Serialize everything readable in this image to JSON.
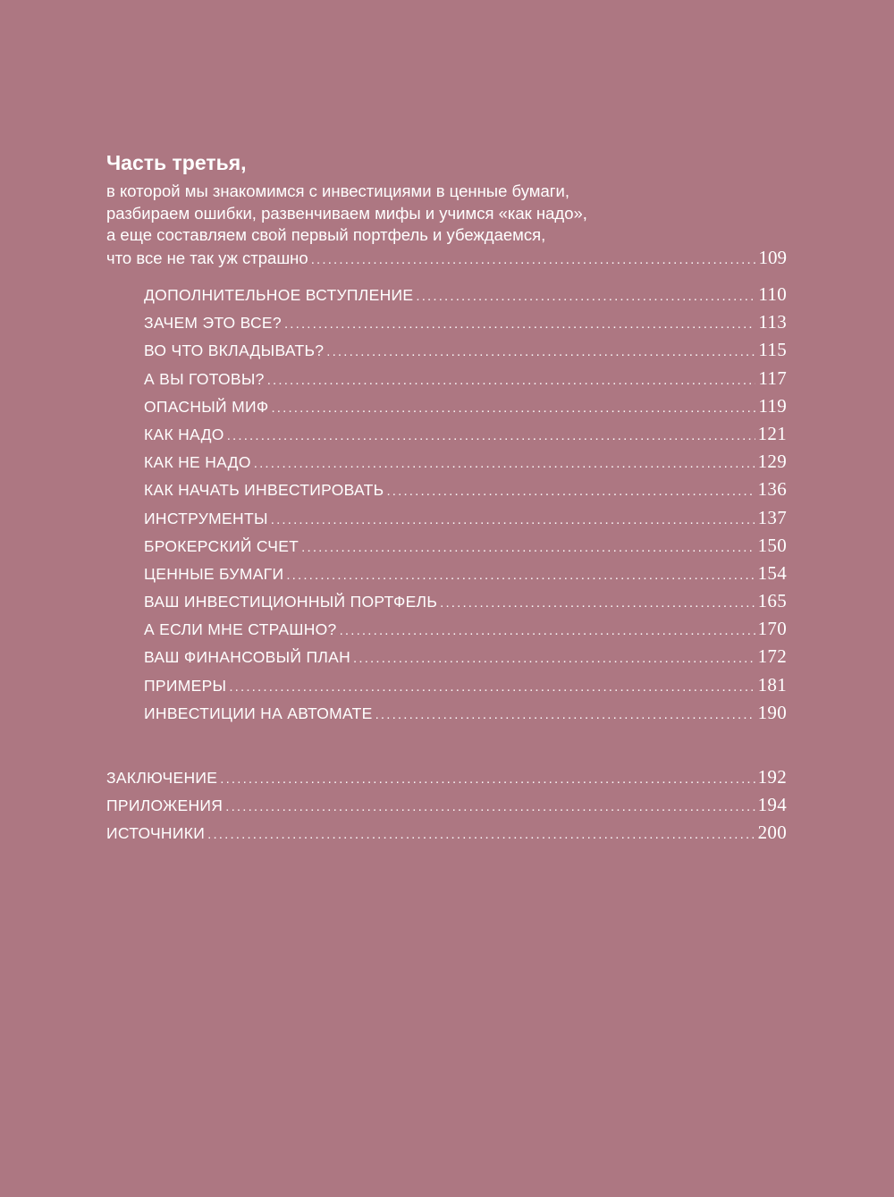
{
  "part": {
    "title": "Часть третья,",
    "intro_lines": [
      "в которой мы знакомимся с инвестициями в ценные бумаги,",
      "разбираем ошибки, развенчиваем мифы и учимся «как надо»,",
      "а еще составляем свой первый портфель и убеждаемся,",
      "что все не так уж страшно"
    ],
    "page": "109"
  },
  "chapters": [
    {
      "label": "ДОПОЛНИТЕЛЬНОЕ ВСТУПЛЕНИЕ",
      "page": "110"
    },
    {
      "label": "ЗАЧЕМ ЭТО ВСЕ?",
      "page": "113"
    },
    {
      "label": "ВО ЧТО ВКЛАДЫВАТЬ?",
      "page": "115"
    },
    {
      "label": "А ВЫ ГОТОВЫ?",
      "page": "117"
    },
    {
      "label": "ОПАСНЫЙ МИФ",
      "page": "119"
    },
    {
      "label": "КАК НАДО",
      "page": "121"
    },
    {
      "label": "КАК НЕ НАДО",
      "page": "129"
    },
    {
      "label": "КАК НАЧАТЬ ИНВЕСТИРОВАТЬ",
      "page": "136"
    },
    {
      "label": "ИНСТРУМЕНТЫ",
      "page": "137"
    },
    {
      "label": "БРОКЕРСКИЙ СЧЕТ",
      "page": "150"
    },
    {
      "label": "ЦЕННЫЕ БУМАГИ",
      "page": "154"
    },
    {
      "label": "ВАШ ИНВЕСТИЦИОННЫЙ ПОРТФЕЛЬ",
      "page": "165"
    },
    {
      "label": "А ЕСЛИ МНЕ СТРАШНО?",
      "page": "170"
    },
    {
      "label": "ВАШ ФИНАНСОВЫЙ ПЛАН",
      "page": "172"
    },
    {
      "label": "ПРИМЕРЫ",
      "page": "181"
    },
    {
      "label": "ИНВЕСТИЦИИ НА АВТОМАТЕ",
      "page": "190"
    }
  ],
  "back_matter": [
    {
      "label": "ЗАКЛЮЧЕНИЕ",
      "page": "192"
    },
    {
      "label": "ПРИЛОЖЕНИЯ",
      "page": "194"
    },
    {
      "label": "ИСТОЧНИКИ",
      "page": "200"
    }
  ],
  "colors": {
    "background": "#ad7782",
    "text": "#ffffff"
  }
}
